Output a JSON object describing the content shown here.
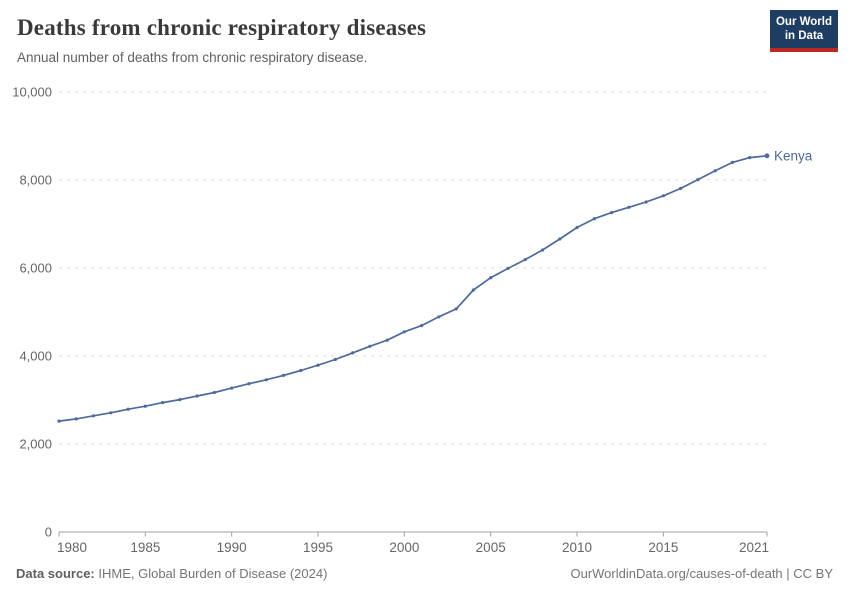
{
  "header": {
    "title": "Deaths from chronic respiratory diseases",
    "subtitle": "Annual number of deaths from chronic respiratory disease.",
    "logo": {
      "line1": "Our World",
      "line2": "in Data",
      "bg": "#1d3d63",
      "stripe": "#be2823"
    }
  },
  "chart_data": {
    "type": "line",
    "title": "Deaths from chronic respiratory diseases",
    "xlabel": "",
    "ylabel": "",
    "grid": "horizontal-dashed",
    "legend_position": "end-of-line-label",
    "xlim": [
      1980,
      2021
    ],
    "ylim": [
      0,
      10000
    ],
    "x_ticks": [
      1980,
      1985,
      1990,
      1995,
      2000,
      2005,
      2010,
      2015,
      2021
    ],
    "y_ticks": [
      0,
      2000,
      4000,
      6000,
      8000,
      10000
    ],
    "colors": {
      "axis": "#a1a1a1",
      "gridline": "#dddddd",
      "tick_label": "#666666"
    },
    "series": [
      {
        "name": "Kenya",
        "color": "#4C6A9C",
        "x": [
          1980,
          1981,
          1982,
          1983,
          1984,
          1985,
          1986,
          1987,
          1988,
          1989,
          1990,
          1991,
          1992,
          1993,
          1994,
          1995,
          1996,
          1997,
          1998,
          1999,
          2000,
          2001,
          2002,
          2003,
          2004,
          2005,
          2006,
          2007,
          2008,
          2009,
          2010,
          2011,
          2012,
          2013,
          2014,
          2015,
          2016,
          2017,
          2018,
          2019,
          2020,
          2021
        ],
        "values": [
          2520,
          2570,
          2640,
          2710,
          2790,
          2860,
          2940,
          3010,
          3090,
          3170,
          3270,
          3370,
          3460,
          3560,
          3670,
          3790,
          3920,
          4070,
          4220,
          4360,
          4550,
          4690,
          4890,
          5070,
          5500,
          5780,
          5990,
          6190,
          6410,
          6660,
          6920,
          7120,
          7260,
          7380,
          7500,
          7640,
          7810,
          8010,
          8210,
          8400,
          8510,
          8550
        ]
      }
    ]
  },
  "footer": {
    "source_label": "Data source:",
    "source_text": " IHME, Global Burden of Disease (2024)",
    "credit": "OurWorldinData.org/causes-of-death | CC BY"
  }
}
